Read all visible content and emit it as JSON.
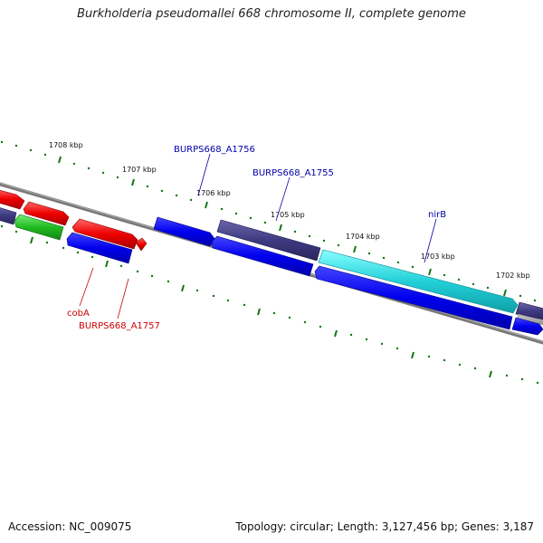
{
  "title": "Burkholderia pseudomallei 668 chromosome II, complete genome",
  "footer": {
    "accession": "Accession: NC_009075",
    "summary": "Topology: circular; Length: 3,127,456 bp; Genes: 3,187"
  },
  "scale": {
    "ticks": [
      {
        "label": "1702 kbp",
        "value": 1702
      },
      {
        "label": "1703 kbp",
        "value": 1703
      },
      {
        "label": "1704 kbp",
        "value": 1704
      },
      {
        "label": "1705 kbp",
        "value": 1705
      },
      {
        "label": "1706 kbp",
        "value": 1706
      },
      {
        "label": "1707 kbp",
        "value": 1707
      },
      {
        "label": "1708 kbp",
        "value": 1708
      }
    ]
  },
  "gene_labels": [
    {
      "id": "burps-a1756",
      "text": "BURPS668_A1756",
      "color": "#0000aa"
    },
    {
      "id": "burps-a1755",
      "text": "BURPS668_A1755",
      "color": "#0000aa"
    },
    {
      "id": "nirb",
      "text": "nirB",
      "color": "#0000aa"
    },
    {
      "id": "coba",
      "text": "cobA",
      "color": "#cc0000"
    },
    {
      "id": "burps-a1757",
      "text": "BURPS668_A1757",
      "color": "#cc0000"
    }
  ],
  "colors": {
    "blue": "#0000ee",
    "navy": "#3e3a80",
    "cyan": "#22d0d8",
    "red": "#ee0000",
    "green": "#22bb22",
    "backbone": "#777777",
    "tick": "#117711"
  }
}
